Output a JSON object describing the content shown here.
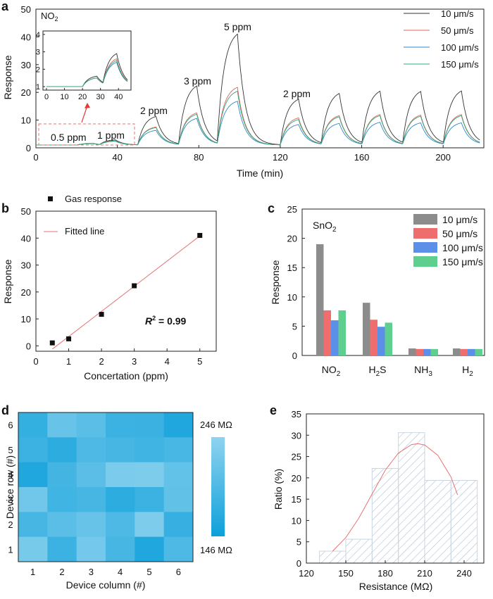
{
  "chart_data": [
    {
      "panel": "a",
      "type": "line",
      "title": "",
      "xlabel": "Time (min)",
      "ylabel": "Response",
      "xlim": [
        0,
        220
      ],
      "ylim": [
        0,
        50
      ],
      "xticks": [
        "0",
        "40",
        "80",
        "120",
        "160",
        "200"
      ],
      "yticks": [
        "0",
        "10",
        "20",
        "30",
        "40",
        "50"
      ],
      "gas_label": "NO",
      "gas_sub": "2",
      "legend": [
        "10 μm/s",
        "50 μm/s",
        "100 μm/s",
        "150 μm/s"
      ],
      "colors": [
        "#333333",
        "#e0665a",
        "#2f86c7",
        "#2fa877"
      ],
      "annotations": [
        "0.5 ppm",
        "1 ppm",
        "2 ppm",
        "3 ppm",
        "5 ppm",
        "2 ppm"
      ],
      "pulses": [
        {
          "start": 20,
          "end": 28,
          "peaks": [
            1.6,
            1.5,
            1.5,
            1.5
          ]
        },
        {
          "start": 31,
          "end": 39,
          "peaks": [
            2.9,
            2.6,
            2.4,
            2.5
          ]
        },
        {
          "start": 50,
          "end": 59,
          "peaks": [
            11.3,
            7.5,
            6.3,
            7.3
          ]
        },
        {
          "start": 70,
          "end": 79,
          "peaks": [
            22.3,
            12.6,
            10.6,
            12.1
          ]
        },
        {
          "start": 89,
          "end": 99,
          "peaks": [
            41.0,
            21.8,
            16.8,
            20.4
          ]
        },
        {
          "start": 120,
          "end": 129,
          "peaks": [
            17.5,
            10.8,
            8.4,
            10.2
          ]
        },
        {
          "start": 140,
          "end": 149,
          "peaks": [
            19.6,
            11.6,
            8.8,
            11.2
          ]
        },
        {
          "start": 160,
          "end": 169,
          "peaks": [
            20.4,
            12.0,
            9.2,
            11.6
          ]
        },
        {
          "start": 180,
          "end": 189,
          "peaks": [
            20.3,
            11.8,
            9.0,
            11.4
          ]
        },
        {
          "start": 200,
          "end": 209,
          "peaks": [
            20.5,
            12.0,
            9.0,
            11.6
          ]
        }
      ],
      "inset": {
        "xticks": [
          "0",
          "10",
          "20",
          "30",
          "40"
        ],
        "yticks": [
          "1",
          "2",
          "3",
          "4"
        ],
        "xlim": [
          0,
          45
        ],
        "ylim": [
          0.8,
          4.2
        ]
      }
    },
    {
      "panel": "b",
      "type": "scatter",
      "xlabel": "Concertation (ppm)",
      "ylabel": "Response",
      "xlim": [
        0,
        5.5
      ],
      "ylim": [
        -2,
        50
      ],
      "xticks": [
        "0",
        "1",
        "2",
        "3",
        "4",
        "5"
      ],
      "yticks": [
        "0",
        "10",
        "20",
        "30",
        "40",
        "50"
      ],
      "x": [
        0.5,
        1,
        2,
        3,
        5
      ],
      "y": [
        1.1,
        2.6,
        11.7,
        22.3,
        41.0
      ],
      "fit": {
        "x": [
          0.5,
          5
        ],
        "y": [
          -1.2,
          40.8
        ]
      },
      "legend": [
        "Gas response",
        "Fitted line"
      ],
      "r2_label": "R",
      "r2_sup": "2",
      "r2_value": " = 0.99"
    },
    {
      "panel": "c",
      "type": "bar",
      "xlabel": "",
      "ylabel": "Response",
      "ylim": [
        0,
        25
      ],
      "yticks": [
        "0",
        "5",
        "10",
        "15",
        "20",
        "25"
      ],
      "material": "SnO",
      "material_sub": "2",
      "categories": [
        {
          "base": "NO",
          "sub": "2",
          "after": ""
        },
        {
          "base": "H",
          "sub": "2",
          "after": "S"
        },
        {
          "base": "NH",
          "sub": "3",
          "after": ""
        },
        {
          "base": "H",
          "sub": "2",
          "after": ""
        }
      ],
      "series": [
        {
          "name": "10 μm/s",
          "color": "#8c8c8c",
          "values": [
            19.0,
            9.0,
            1.2,
            1.2
          ]
        },
        {
          "name": "50 μm/s",
          "color": "#ee6e6e",
          "values": [
            7.7,
            6.1,
            1.1,
            1.1
          ]
        },
        {
          "name": "100 μm/s",
          "color": "#5b8fe8",
          "values": [
            6.0,
            4.9,
            1.1,
            1.1
          ]
        },
        {
          "name": "150 μm/s",
          "color": "#5fcf8f",
          "values": [
            7.7,
            5.6,
            1.1,
            1.1
          ]
        }
      ]
    },
    {
      "panel": "d",
      "type": "heatmap",
      "xlabel": "Device column (#)",
      "ylabel": "Device row (#)",
      "columns": [
        "1",
        "2",
        "3",
        "4",
        "5",
        "6"
      ],
      "rows": [
        "6",
        "5",
        "4",
        "3",
        "2",
        "1"
      ],
      "values": [
        [
          175,
          215,
          205,
          182,
          180,
          160
        ],
        [
          182,
          170,
          195,
          190,
          185,
          192
        ],
        [
          160,
          188,
          205,
          230,
          232,
          212
        ],
        [
          222,
          185,
          190,
          170,
          182,
          210
        ],
        [
          190,
          205,
          215,
          195,
          232,
          178
        ],
        [
          228,
          182,
          225,
          190,
          160,
          195
        ]
      ],
      "vmin": 146,
      "vmax": 246,
      "colorbar_max": "246 MΩ",
      "colorbar_min": "146 MΩ"
    },
    {
      "panel": "e",
      "type": "bar",
      "subtype": "histogram",
      "xlabel": "Resistance (MΩ)",
      "ylabel": "Ratio (%)",
      "xlim": [
        120,
        255
      ],
      "ylim": [
        0,
        35
      ],
      "xticks": [
        "120",
        "150",
        "180",
        "210",
        "240"
      ],
      "yticks": [
        "0",
        "5",
        "10",
        "15",
        "20",
        "25",
        "30",
        "35"
      ],
      "bins": [
        {
          "from": 130,
          "to": 150,
          "value": 2.8
        },
        {
          "from": 150,
          "to": 170,
          "value": 5.6
        },
        {
          "from": 170,
          "to": 190,
          "value": 22.2
        },
        {
          "from": 190,
          "to": 210,
          "value": 30.6
        },
        {
          "from": 210,
          "to": 230,
          "value": 19.4
        },
        {
          "from": 230,
          "to": 250,
          "value": 19.4
        }
      ],
      "fit_curve": {
        "x": [
          140,
          150,
          160,
          170,
          180,
          190,
          200,
          205,
          210,
          220,
          230,
          235
        ],
        "y": [
          2.8,
          6.0,
          10.6,
          16.2,
          21.8,
          25.8,
          27.8,
          28.0,
          27.7,
          25.3,
          20.2,
          16.0
        ]
      }
    }
  ]
}
